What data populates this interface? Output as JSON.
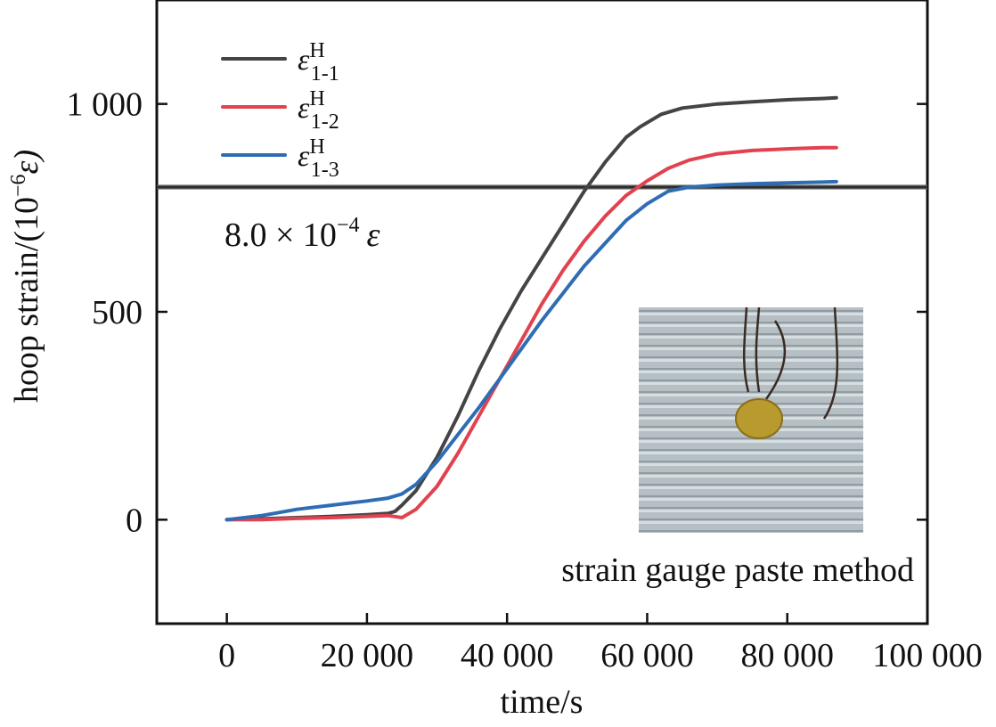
{
  "chart_data": {
    "type": "line",
    "title": "",
    "xlabel": "time/s",
    "ylabel_main": "hoop strain/(10",
    "ylabel_sup": "−6",
    "ylabel_tail": "ε)",
    "xlim": [
      -10000,
      100000
    ],
    "ylim": [
      -250,
      1250
    ],
    "xticks": [
      0,
      20000,
      40000,
      60000,
      80000,
      100000
    ],
    "xtick_labels": [
      "0",
      "20 000",
      "40 000",
      "60 000",
      "80 000",
      "100 000"
    ],
    "yticks": [
      0,
      500,
      1000
    ],
    "ytick_labels": [
      "0",
      "500",
      "1 000"
    ],
    "legend_position": "top-left",
    "series": [
      {
        "name_base": "ε",
        "name_sup": "H",
        "name_sub": "1-1",
        "color": "#444444",
        "points": [
          [
            0,
            0
          ],
          [
            5000,
            2
          ],
          [
            10000,
            5
          ],
          [
            15000,
            8
          ],
          [
            20000,
            12
          ],
          [
            23000,
            15
          ],
          [
            24000,
            20
          ],
          [
            25000,
            35
          ],
          [
            27000,
            70
          ],
          [
            30000,
            150
          ],
          [
            33000,
            250
          ],
          [
            36000,
            360
          ],
          [
            39000,
            460
          ],
          [
            42000,
            550
          ],
          [
            45000,
            630
          ],
          [
            48000,
            710
          ],
          [
            51000,
            790
          ],
          [
            54000,
            860
          ],
          [
            57000,
            920
          ],
          [
            59000,
            945
          ],
          [
            62000,
            975
          ],
          [
            65000,
            990
          ],
          [
            70000,
            1000
          ],
          [
            75000,
            1005
          ],
          [
            80000,
            1010
          ],
          [
            85000,
            1013
          ],
          [
            87000,
            1015
          ]
        ]
      },
      {
        "name_base": "ε",
        "name_sup": "H",
        "name_sub": "1-2",
        "color": "#e0434f",
        "points": [
          [
            0,
            0
          ],
          [
            5000,
            0
          ],
          [
            10000,
            3
          ],
          [
            15000,
            5
          ],
          [
            20000,
            8
          ],
          [
            23000,
            10
          ],
          [
            25000,
            5
          ],
          [
            27000,
            25
          ],
          [
            30000,
            80
          ],
          [
            33000,
            160
          ],
          [
            36000,
            250
          ],
          [
            39000,
            340
          ],
          [
            42000,
            430
          ],
          [
            45000,
            520
          ],
          [
            48000,
            600
          ],
          [
            51000,
            670
          ],
          [
            54000,
            730
          ],
          [
            57000,
            780
          ],
          [
            60000,
            815
          ],
          [
            63000,
            845
          ],
          [
            66000,
            865
          ],
          [
            70000,
            880
          ],
          [
            75000,
            888
          ],
          [
            80000,
            892
          ],
          [
            85000,
            895
          ],
          [
            87000,
            895
          ]
        ]
      },
      {
        "name_base": "ε",
        "name_sup": "H",
        "name_sub": "1-3",
        "color": "#2e6db4",
        "points": [
          [
            0,
            0
          ],
          [
            5000,
            10
          ],
          [
            10000,
            25
          ],
          [
            15000,
            35
          ],
          [
            20000,
            45
          ],
          [
            23000,
            52
          ],
          [
            25000,
            62
          ],
          [
            27000,
            85
          ],
          [
            30000,
            140
          ],
          [
            33000,
            205
          ],
          [
            36000,
            270
          ],
          [
            39000,
            340
          ],
          [
            42000,
            410
          ],
          [
            45000,
            480
          ],
          [
            48000,
            545
          ],
          [
            51000,
            610
          ],
          [
            54000,
            665
          ],
          [
            57000,
            720
          ],
          [
            60000,
            760
          ],
          [
            63000,
            790
          ],
          [
            66000,
            800
          ],
          [
            70000,
            805
          ],
          [
            75000,
            808
          ],
          [
            80000,
            810
          ],
          [
            85000,
            812
          ],
          [
            87000,
            813
          ]
        ]
      }
    ],
    "reference_line": {
      "y": 800,
      "color": "#555555"
    },
    "annotation_main": "8.0 × 10",
    "annotation_sup": "−4",
    "annotation_tail": "ε",
    "inset_caption": "strain gauge paste method",
    "inset_photo": "photo of strain gauge pasted on wire-wound cylinder"
  }
}
